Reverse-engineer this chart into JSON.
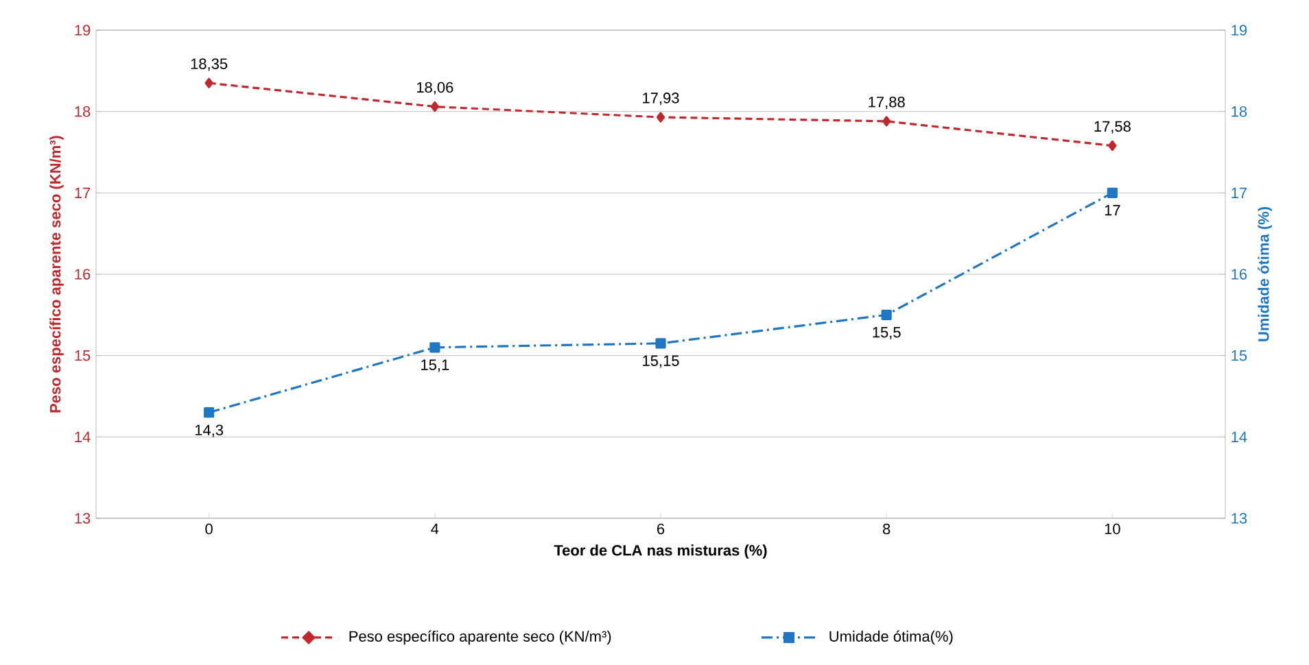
{
  "chart_data": {
    "type": "line",
    "xlabel": "Teor de CLA nas misturas (%)",
    "ylabel": "Peso específico aparente seco (KN/m³)",
    "y2label": "Umidade ótima (%)",
    "categories": [
      "0",
      "4",
      "6",
      "8",
      "10"
    ],
    "series": [
      {
        "name": "Peso específico aparente seco (KN/m³)",
        "color": "#c0282d",
        "values": [
          18.35,
          18.06,
          17.93,
          17.88,
          17.58
        ],
        "value_labels": [
          "18,35",
          "18,06",
          "17,93",
          "17,88",
          "17,58"
        ],
        "marker": "diamond",
        "line_style": "dashed"
      },
      {
        "name": "Umidade ótima(%)",
        "color": "#1f77c4",
        "values": [
          14.3,
          15.1,
          15.15,
          15.5,
          17
        ],
        "value_labels": [
          "14,3",
          "15,1",
          "15,15",
          "15,5",
          "17"
        ],
        "marker": "square",
        "line_style": "dashdot",
        "axis": "y2"
      }
    ],
    "ylim": [
      13,
      19
    ],
    "yticks": [
      13,
      14,
      15,
      16,
      17,
      18,
      19
    ],
    "y2lim": [
      13,
      19
    ],
    "y2ticks": [
      13,
      14,
      15,
      16,
      17,
      18,
      19
    ],
    "grid": "y",
    "legend": "bottom"
  }
}
